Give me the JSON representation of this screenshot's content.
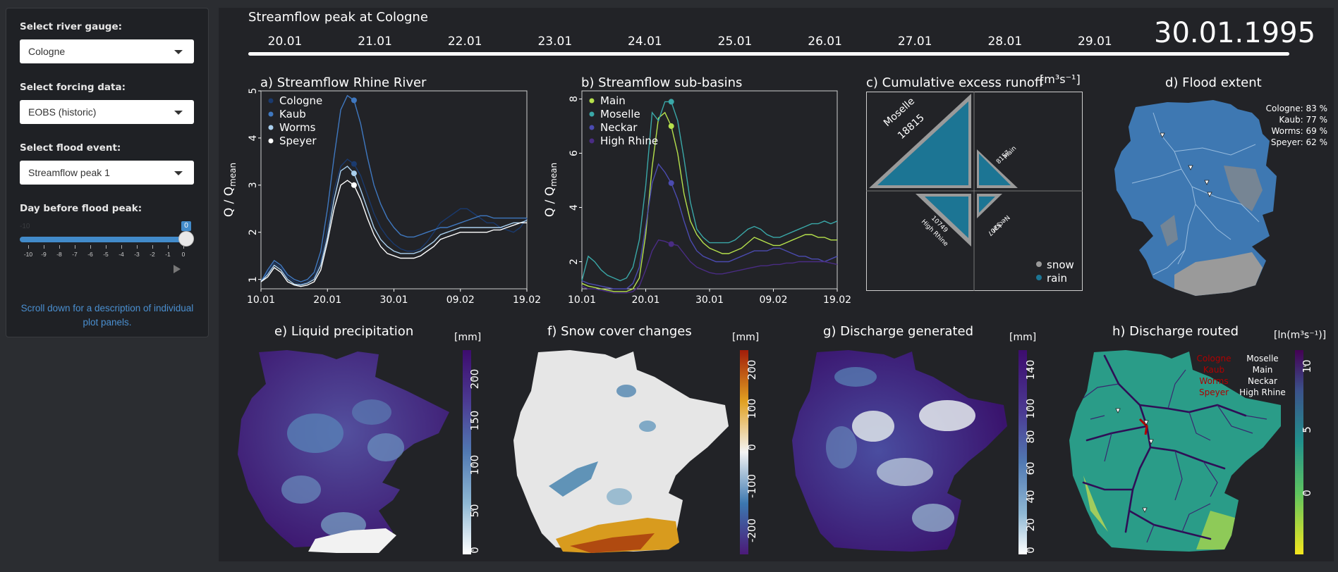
{
  "sidebar": {
    "gauge_label": "Select river gauge:",
    "gauge_value": "Cologne",
    "forcing_label": "Select forcing data:",
    "forcing_value": "EOBS (historic)",
    "event_label": "Select flood event:",
    "event_value": "Streamflow peak 1",
    "day_label": "Day before flood peak:",
    "slider_min": "-10",
    "slider_value": "0",
    "slider_ticks": [
      "-10",
      "-9",
      "-8",
      "-7",
      "-6",
      "-5",
      "-4",
      "-3",
      "-2",
      "-1",
      "0"
    ],
    "note": "Scroll down for a description of individual plot panels."
  },
  "header": {
    "event_title": "Streamflow peak at Cologne",
    "current_date": "30.01.1995",
    "timeline_dates": [
      "20.01",
      "21.01",
      "22.01",
      "23.01",
      "24.01",
      "25.01",
      "26.01",
      "27.01",
      "28.01",
      "29.01"
    ]
  },
  "panels": {
    "a_title": "a) Streamflow Rhine River",
    "b_title": "b) Streamflow sub-basins",
    "c_title": "c) Cumulative excess runoff",
    "c_unit": "[m³s⁻¹]",
    "d_title": "d) Flood extent",
    "e_title": "e) Liquid precipitation",
    "f_title": "f) Snow cover changes",
    "g_title": "g) Discharge generated",
    "h_title": "h) Discharge routed",
    "ylabel": "Q / Q",
    "ylabel_sub": "mean",
    "unit_mm": "[mm]",
    "unit_ln": "[ln(m³s⁻¹)]"
  },
  "colors": {
    "cologne": "#1a3a6e",
    "kaub": "#3f78c0",
    "worms": "#a9cfee",
    "speyer": "#ffffff",
    "main": "#b6e14c",
    "moselle": "#3aa8a8",
    "neckar": "#4b4bb0",
    "highrhine": "#4a2c84",
    "rain": "#1c7594",
    "snow": "#9a9a9a",
    "basin": "#3e78b2"
  },
  "flood_extent": {
    "lines": [
      "Cologne: 83 %",
      "Kaub: 77 %",
      "Worms: 69 %",
      "Speyer: 62 %"
    ]
  },
  "runoff": {
    "moselle_label": "Moselle",
    "moselle_value": "18815",
    "main_label": "Main",
    "main_value": "8157",
    "highrhine_label": "High Rhine",
    "highrhine_value": "10749",
    "neckar_label": "Neckar",
    "neckar_value": "5207",
    "legend_snow": "snow",
    "legend_rain": "rain"
  },
  "routed_legend": {
    "left": [
      "Cologne",
      "Kaub",
      "Worms",
      "Speyer"
    ],
    "right": [
      "Moselle",
      "Main",
      "Neckar",
      "High Rhine"
    ]
  },
  "colorbars": {
    "e_ticks": [
      "0",
      "50",
      "100",
      "150",
      "200"
    ],
    "f_ticks": [
      "-200",
      "-100",
      "0",
      "100",
      "200"
    ],
    "g_ticks": [
      "0",
      "20",
      "40",
      "60",
      "80",
      "100",
      "140"
    ],
    "h_ticks": [
      "0",
      "5",
      "10"
    ]
  },
  "chart_data": [
    {
      "type": "line",
      "title": "a) Streamflow Rhine River",
      "ylabel": "Q / Qmean",
      "x_ticks": [
        "10.01",
        "20.01",
        "30.01",
        "09.02",
        "19.02"
      ],
      "ylim": [
        0.8,
        5.0
      ],
      "y_ticks": [
        1,
        2,
        3,
        4,
        5
      ],
      "legend_position": "top-left",
      "x": [
        0,
        1,
        2,
        3,
        4,
        5,
        6,
        7,
        8,
        9,
        10,
        11,
        12,
        13,
        14,
        15,
        16,
        17,
        18,
        19,
        20,
        21,
        22,
        23,
        24,
        25,
        26,
        27,
        28,
        29,
        30,
        31,
        32,
        33,
        34,
        35,
        36,
        37,
        38,
        39,
        40
      ],
      "series": [
        {
          "name": "Cologne",
          "values": [
            0.95,
            1.15,
            1.35,
            1.25,
            1.05,
            0.95,
            0.9,
            0.95,
            1.05,
            1.4,
            2.1,
            2.9,
            3.4,
            3.55,
            3.45,
            3.2,
            2.8,
            2.4,
            2.1,
            1.9,
            1.75,
            1.65,
            1.6,
            1.6,
            1.65,
            1.8,
            2.0,
            2.2,
            2.3,
            2.4,
            2.5,
            2.5,
            2.4,
            2.3,
            2.2,
            2.2,
            2.1,
            2.05,
            2.0,
            2.1,
            2.3
          ]
        },
        {
          "name": "Kaub",
          "values": [
            0.95,
            1.2,
            1.4,
            1.3,
            1.1,
            1.0,
            0.95,
            1.0,
            1.15,
            1.6,
            2.5,
            3.6,
            4.6,
            4.9,
            4.8,
            4.3,
            3.6,
            3.0,
            2.6,
            2.3,
            2.1,
            1.95,
            1.9,
            1.9,
            1.95,
            2.0,
            2.05,
            2.1,
            2.1,
            2.15,
            2.2,
            2.25,
            2.3,
            2.35,
            2.35,
            2.3,
            2.3,
            2.3,
            2.3,
            2.3,
            2.3
          ]
        },
        {
          "name": "Worms",
          "values": [
            0.95,
            1.1,
            1.3,
            1.2,
            1.0,
            0.9,
            0.88,
            0.92,
            1.0,
            1.3,
            1.9,
            2.7,
            3.3,
            3.4,
            3.25,
            2.9,
            2.5,
            2.1,
            1.85,
            1.7,
            1.6,
            1.55,
            1.55,
            1.55,
            1.6,
            1.7,
            1.8,
            1.95,
            2.0,
            2.05,
            2.1,
            2.1,
            2.1,
            2.1,
            2.1,
            2.1,
            2.1,
            2.15,
            2.2,
            2.2,
            2.25
          ]
        },
        {
          "name": "Speyer",
          "values": [
            0.95,
            1.05,
            1.25,
            1.15,
            0.95,
            0.88,
            0.85,
            0.88,
            0.95,
            1.2,
            1.8,
            2.5,
            3.0,
            3.1,
            3.0,
            2.7,
            2.3,
            1.95,
            1.7,
            1.55,
            1.5,
            1.45,
            1.45,
            1.45,
            1.5,
            1.6,
            1.7,
            1.85,
            1.9,
            1.95,
            2.0,
            2.0,
            2.0,
            2.0,
            2.0,
            2.05,
            2.05,
            2.1,
            2.15,
            2.2,
            2.2
          ]
        }
      ],
      "highlight_index": 14
    },
    {
      "type": "line",
      "title": "b) Streamflow sub-basins",
      "ylabel": "Q / Qmean",
      "x_ticks": [
        "10.01",
        "20.01",
        "30.01",
        "09.02",
        "19.02"
      ],
      "ylim": [
        1.0,
        8.3
      ],
      "y_ticks": [
        2,
        4,
        6,
        8
      ],
      "legend_position": "top-left",
      "x": [
        0,
        1,
        2,
        3,
        4,
        5,
        6,
        7,
        8,
        9,
        10,
        11,
        12,
        13,
        14,
        15,
        16,
        17,
        18,
        19,
        20,
        21,
        22,
        23,
        24,
        25,
        26,
        27,
        28,
        29,
        30,
        31,
        32,
        33,
        34,
        35,
        36,
        37,
        38,
        39,
        40
      ],
      "series": [
        {
          "name": "Main",
          "values": [
            1.2,
            1.1,
            1.05,
            1.0,
            0.95,
            0.9,
            0.9,
            0.9,
            1.0,
            1.4,
            3.0,
            5.5,
            7.3,
            7.5,
            7.0,
            6.0,
            4.5,
            3.5,
            3.0,
            2.7,
            2.5,
            2.4,
            2.3,
            2.3,
            2.4,
            2.5,
            2.7,
            2.9,
            2.8,
            2.7,
            2.6,
            2.6,
            2.7,
            2.8,
            2.9,
            3.0,
            3.0,
            2.9,
            2.9,
            2.8,
            2.8
          ]
        },
        {
          "name": "Moselle",
          "values": [
            1.3,
            2.2,
            2.0,
            1.7,
            1.5,
            1.4,
            1.3,
            1.4,
            1.8,
            2.8,
            4.8,
            7.5,
            7.2,
            7.9,
            7.9,
            7.2,
            5.8,
            4.2,
            3.2,
            2.9,
            2.7,
            2.7,
            2.7,
            2.7,
            2.8,
            3.0,
            3.2,
            3.3,
            3.2,
            3.0,
            2.9,
            2.9,
            3.0,
            3.1,
            3.2,
            3.3,
            3.4,
            3.4,
            3.5,
            3.4,
            3.5
          ]
        },
        {
          "name": "Neckar",
          "values": [
            1.3,
            1.2,
            1.15,
            1.1,
            1.05,
            1.0,
            1.0,
            1.0,
            1.2,
            1.8,
            3.3,
            4.9,
            5.6,
            5.3,
            4.9,
            4.3,
            3.5,
            2.8,
            2.4,
            2.2,
            2.1,
            2.0,
            2.0,
            2.0,
            2.1,
            2.2,
            2.3,
            2.4,
            2.4,
            2.4,
            2.5,
            2.5,
            2.4,
            2.3,
            2.2,
            2.2,
            2.1,
            2.1,
            2.0,
            2.1,
            2.2
          ]
        },
        {
          "name": "High Rhine",
          "values": [
            1.1,
            1.0,
            1.0,
            0.95,
            0.9,
            0.85,
            0.85,
            0.85,
            0.9,
            1.1,
            1.7,
            2.4,
            2.8,
            2.75,
            2.65,
            2.6,
            2.3,
            2.0,
            1.8,
            1.7,
            1.6,
            1.55,
            1.55,
            1.6,
            1.65,
            1.7,
            1.75,
            1.8,
            1.85,
            1.85,
            1.9,
            1.9,
            1.95,
            1.95,
            2.0,
            2.0,
            2.0,
            2.0,
            2.0,
            1.95,
            1.9
          ]
        }
      ],
      "highlight_index": 14
    }
  ]
}
